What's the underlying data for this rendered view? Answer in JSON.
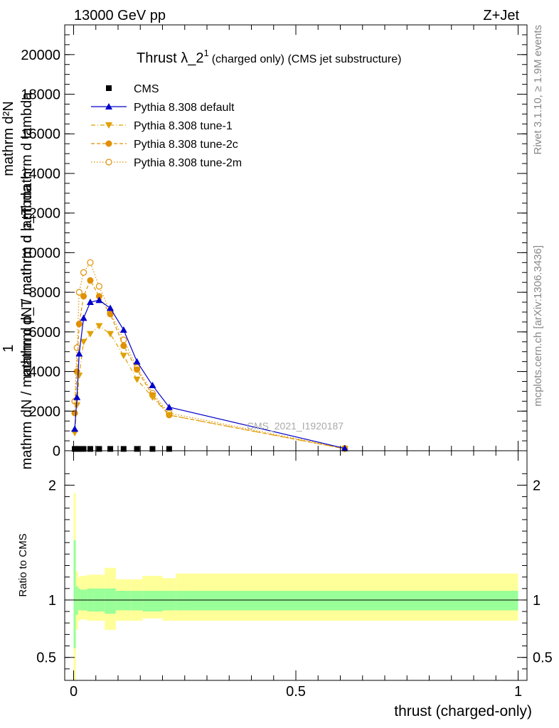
{
  "header": {
    "energy_label": "13000 GeV pp",
    "process_label": "Z+Jet"
  },
  "title": {
    "main": "Thrust λ_2",
    "superscript": "1",
    "suffix": "(charged only) (CMS jet substructure)"
  },
  "side_labels": {
    "rivet": "Rivet 3.1.10, ≥ 1.9M events",
    "mcplots": "mcplots.cern.ch [arXiv:1306.3436]"
  },
  "watermark": "CMS_2021_I1920187",
  "ylabel_main": {
    "line1": "mathrm dN / mathrm d p_T mathrm d lambda",
    "line2": "1",
    "line3": "mathrm d²N",
    "line4": "mathrm dN / mathrm d p_T mathrm d lambda"
  },
  "ylabel_ratio": "Ratio to CMS",
  "xlabel": "thrust (charged-only)",
  "legend": [
    {
      "label": "CMS",
      "color": "#000000",
      "marker": "square",
      "line": "none"
    },
    {
      "label": "Pythia 8.308 default",
      "color": "#0000cc",
      "marker": "triangle-up",
      "line": "solid"
    },
    {
      "label": "Pythia 8.308 tune-1",
      "color": "#e0a000",
      "marker": "triangle-down",
      "line": "dashdot"
    },
    {
      "label": "Pythia 8.308 tune-2c",
      "color": "#e09000",
      "marker": "circle",
      "line": "dashed"
    },
    {
      "label": "Pythia 8.308 tune-2m",
      "color": "#e09000",
      "marker": "circle-open",
      "line": "dotted"
    }
  ],
  "chart_data": {
    "type": "line",
    "xlim": [
      -0.02,
      1.02
    ],
    "ylim": [
      0,
      21500
    ],
    "ratio_ylim": [
      0.3,
      2.3
    ],
    "x_ticks": [
      0,
      0.5,
      1
    ],
    "x_tick_labels": [
      "0",
      "0.5",
      "1"
    ],
    "y_ticks": [
      0,
      2000,
      4000,
      6000,
      8000,
      10000,
      12000,
      14000,
      16000,
      18000,
      20000
    ],
    "y_tick_labels": [
      "0",
      "2000",
      "4000",
      "6000",
      "8000",
      "10000",
      "12000",
      "14000",
      "16000",
      "18000",
      "20000"
    ],
    "ratio_ticks": [
      0.5,
      1,
      2
    ],
    "ratio_tick_labels": [
      "0.5",
      "1",
      "2"
    ],
    "cms": {
      "x": [
        0.0025,
        0.0075,
        0.0125,
        0.0225,
        0.0375,
        0.0575,
        0.0825,
        0.1125,
        0.1425,
        0.1775,
        0.215
      ],
      "y": [
        20,
        20,
        20,
        20,
        20,
        20,
        20,
        20,
        20,
        20,
        20
      ]
    },
    "series": [
      {
        "name": "Pythia 8.308 default",
        "x": [
          0.0025,
          0.0075,
          0.0125,
          0.0225,
          0.0375,
          0.0575,
          0.0825,
          0.1125,
          0.1425,
          0.1775,
          0.215,
          0.61
        ],
        "y": [
          1100,
          2700,
          4900,
          6700,
          7500,
          7600,
          7200,
          6100,
          4500,
          3300,
          2200,
          120
        ]
      },
      {
        "name": "Pythia 8.308 tune-1",
        "x": [
          0.0025,
          0.0075,
          0.0125,
          0.0225,
          0.0375,
          0.0575,
          0.0825,
          0.1125,
          0.1425,
          0.1775,
          0.215,
          0.61
        ],
        "y": [
          900,
          2300,
          3800,
          5500,
          5900,
          6300,
          5900,
          4800,
          3600,
          2700,
          1800,
          100
        ]
      },
      {
        "name": "Pythia 8.308 tune-2c",
        "x": [
          0.0025,
          0.0075,
          0.0125,
          0.0225,
          0.0375,
          0.0575,
          0.0825,
          0.1125,
          0.1425,
          0.1775,
          0.215,
          0.61
        ],
        "y": [
          1900,
          4000,
          6400,
          7800,
          8600,
          7800,
          6900,
          5300,
          4100,
          2800,
          1800,
          100
        ]
      },
      {
        "name": "Pythia 8.308 tune-2m",
        "x": [
          0.0025,
          0.0075,
          0.0125,
          0.0225,
          0.0375,
          0.0575,
          0.0825,
          0.1125,
          0.1425,
          0.1775,
          0.215,
          0.61
        ],
        "y": [
          2500,
          5200,
          8000,
          9000,
          9500,
          8300,
          7000,
          5600,
          4200,
          2900,
          1900,
          120
        ]
      }
    ],
    "ratio_bands": {
      "edges": [
        0,
        0.005,
        0.01,
        0.015,
        0.03,
        0.045,
        0.07,
        0.095,
        0.13,
        0.155,
        0.2,
        0.23,
        1.0
      ],
      "inner_lo": [
        0.58,
        0.87,
        0.91,
        0.91,
        0.9,
        0.9,
        0.88,
        0.91,
        0.91,
        0.9,
        0.91,
        0.91
      ],
      "inner_hi": [
        1.52,
        1.12,
        1.1,
        1.09,
        1.1,
        1.1,
        1.1,
        1.08,
        1.08,
        1.08,
        1.08,
        1.08
      ],
      "outer_lo": [
        0.3,
        0.74,
        0.82,
        0.83,
        0.82,
        0.82,
        0.74,
        0.82,
        0.82,
        0.84,
        0.82,
        0.82
      ],
      "outer_hi": [
        1.93,
        1.25,
        1.2,
        1.21,
        1.22,
        1.22,
        1.28,
        1.18,
        1.18,
        1.21,
        1.19,
        1.23
      ]
    },
    "grid": false,
    "legend_position": "top-left"
  }
}
